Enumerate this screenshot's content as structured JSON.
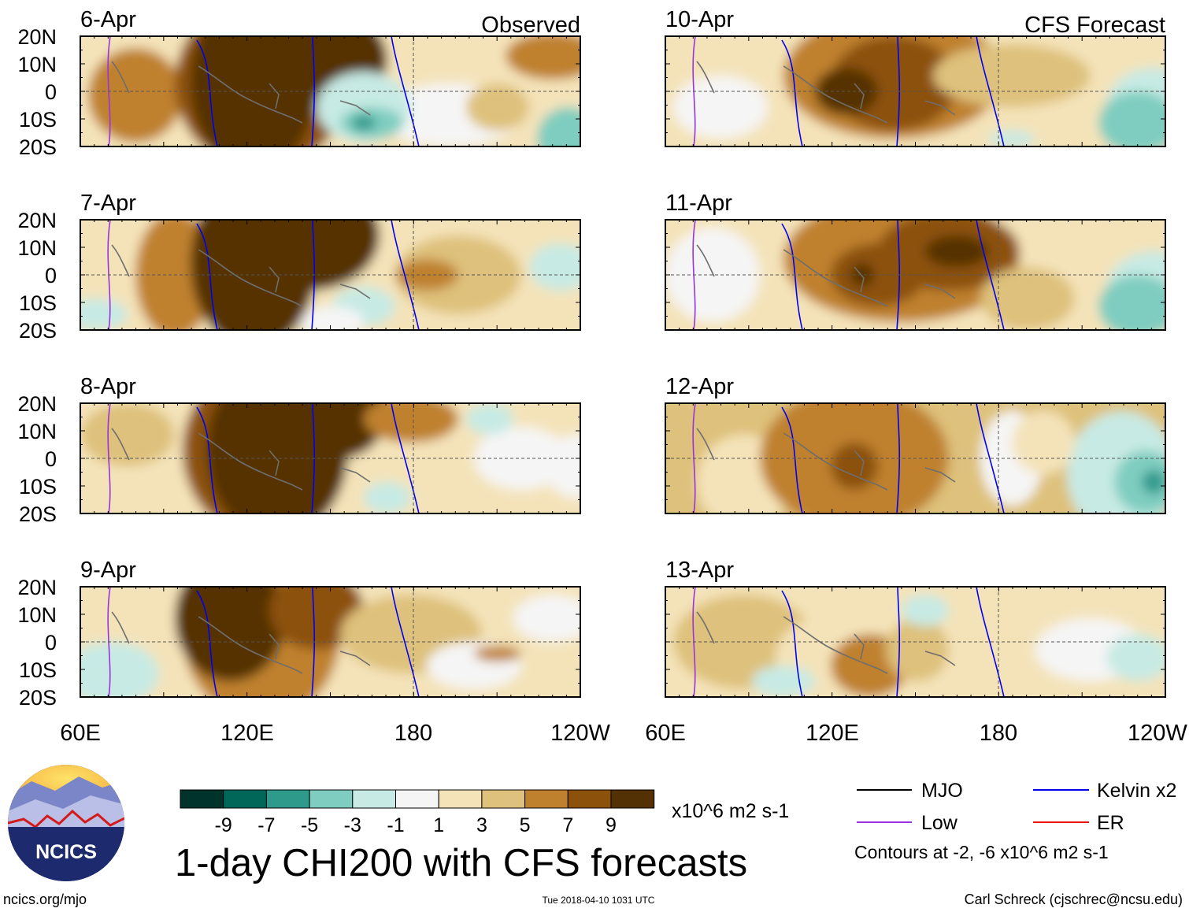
{
  "chart_data": {
    "type": "heatmap",
    "title": "1-day CHI200 with CFS forecasts",
    "variable": "CHI200 (200-hPa velocity potential) anomaly",
    "units": "x10^6 m2 s-1",
    "x_axis": {
      "range": [
        "60E",
        "120W"
      ],
      "ticks": [
        "60E",
        "120E",
        "180",
        "120W"
      ]
    },
    "y_axis": {
      "range": [
        "20S",
        "20N"
      ],
      "ticks": [
        "20N",
        "10N",
        "0",
        "10S",
        "20S"
      ]
    },
    "colorbar": {
      "labels": [
        "-9",
        "-7",
        "-5",
        "-3",
        "-1",
        "1",
        "3",
        "5",
        "7",
        "9"
      ],
      "colors": [
        "#00332b",
        "#006759",
        "#2e9a8c",
        "#7fcdc0",
        "#c7eae4",
        "#f5f5f5",
        "#f4e3b9",
        "#dec17c",
        "#bf812d",
        "#8c510a",
        "#543005"
      ]
    },
    "columns": [
      {
        "header": "Observed",
        "panels": [
          "6-Apr",
          "7-Apr",
          "8-Apr",
          "9-Apr"
        ]
      },
      {
        "header": "CFS Forecast",
        "panels": [
          "10-Apr",
          "11-Apr",
          "12-Apr",
          "13-Apr"
        ]
      }
    ],
    "legend": {
      "items": [
        {
          "label": "MJO",
          "color": "#000000"
        },
        {
          "label": "Kelvin x2",
          "color": "#0000ee"
        },
        {
          "label": "Low",
          "color": "#9933dd"
        },
        {
          "label": "ER",
          "color": "#ee1111"
        }
      ],
      "note": "Contours at -2, -6 x10^6 m2 s-1"
    }
  },
  "footer": {
    "logo_text": "NCICS",
    "left": "ncics.org/mjo",
    "center": "Tue 2018-04-10 1031 UTC",
    "right": "Carl Schreck (cjschrec@ncsu.edu)"
  }
}
